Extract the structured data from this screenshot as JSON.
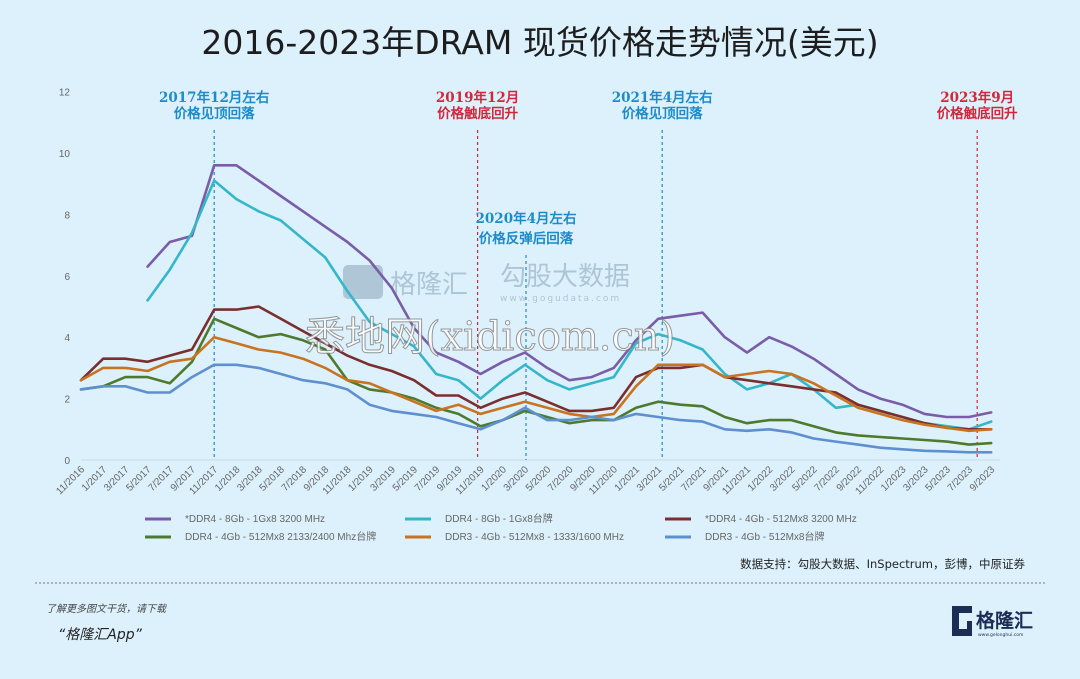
{
  "chart_data": {
    "type": "line",
    "title": "2016-2023年DRAM 现货价格走势情况(美元)",
    "xlabel": "",
    "ylabel": "",
    "ylim": [
      0,
      12
    ],
    "yticks": [
      "0",
      "2",
      "4",
      "6",
      "8",
      "10",
      "12"
    ],
    "grid": false,
    "legend_placement": "bottom",
    "categories": [
      "11/2016",
      "1/2017",
      "3/2017",
      "5/2017",
      "7/2017",
      "9/2017",
      "11/2017",
      "1/2018",
      "3/2018",
      "5/2018",
      "7/2018",
      "9/2018",
      "11/2018",
      "1/2019",
      "3/2019",
      "5/2019",
      "7/2019",
      "9/2019",
      "11/2019",
      "1/2020",
      "3/2020",
      "5/2020",
      "7/2020",
      "9/2020",
      "11/2020",
      "1/2021",
      "3/2021",
      "5/2021",
      "7/2021",
      "9/2021",
      "11/2021",
      "1/2022",
      "3/2022",
      "5/2022",
      "7/2022",
      "9/2022",
      "11/2022",
      "1/2023",
      "3/2023",
      "5/2023",
      "7/2023",
      "9/2023"
    ],
    "series": [
      {
        "name": "*DDR4 - 8Gb - 1Gx8 3200 MHz",
        "color": "#7a5ca8",
        "values": [
          null,
          null,
          null,
          6.3,
          7.1,
          7.3,
          9.6,
          9.6,
          9.1,
          8.6,
          8.1,
          7.6,
          7.1,
          6.5,
          5.6,
          4.3,
          3.5,
          3.2,
          2.8,
          3.2,
          3.5,
          3.0,
          2.6,
          2.7,
          3.0,
          3.9,
          4.6,
          4.7,
          4.8,
          4.0,
          3.5,
          4.0,
          3.7,
          3.3,
          2.8,
          2.3,
          2.0,
          1.8,
          1.5,
          1.4,
          1.4,
          1.55
        ]
      },
      {
        "name": "DDR4 - 8Gb - 1Gx8台牌",
        "color": "#35b6c9",
        "values": [
          null,
          null,
          null,
          5.2,
          6.2,
          7.4,
          9.1,
          8.5,
          8.1,
          7.8,
          7.2,
          6.6,
          5.5,
          4.5,
          4.1,
          3.7,
          2.8,
          2.6,
          2.0,
          2.6,
          3.1,
          2.6,
          2.3,
          2.5,
          2.7,
          3.8,
          4.1,
          3.9,
          3.6,
          2.8,
          2.3,
          2.5,
          2.8,
          2.3,
          1.7,
          1.8,
          1.6,
          1.4,
          1.2,
          1.1,
          1.0,
          1.25
        ]
      },
      {
        "name": "*DDR4 - 4Gb - 512Mx8 3200 MHz",
        "color": "#7b2e2e",
        "values": [
          2.6,
          3.3,
          3.3,
          3.2,
          3.4,
          3.6,
          4.9,
          4.9,
          5.0,
          4.6,
          4.2,
          3.8,
          3.4,
          3.1,
          2.9,
          2.6,
          2.1,
          2.1,
          1.7,
          2.0,
          2.2,
          1.9,
          1.6,
          1.6,
          1.7,
          2.7,
          3.0,
          3.0,
          3.1,
          2.7,
          2.6,
          2.5,
          2.4,
          2.3,
          2.2,
          1.8,
          1.6,
          1.4,
          1.2,
          1.05,
          1.0,
          1.0
        ]
      },
      {
        "name": "DDR4 - 4Gb - 512Mx8 2133/2400 Mhz台牌",
        "color": "#4d7a2c",
        "values": [
          2.3,
          2.4,
          2.7,
          2.7,
          2.5,
          3.2,
          4.6,
          4.3,
          4.0,
          4.1,
          3.9,
          3.6,
          2.6,
          2.3,
          2.2,
          2.0,
          1.7,
          1.5,
          1.1,
          1.3,
          1.6,
          1.4,
          1.2,
          1.3,
          1.3,
          1.7,
          1.9,
          1.8,
          1.75,
          1.4,
          1.2,
          1.3,
          1.3,
          1.1,
          0.9,
          0.8,
          0.75,
          0.7,
          0.65,
          0.6,
          0.5,
          0.55
        ]
      },
      {
        "name": "DDR3 - 4Gb - 512Mx8 - 1333/1600 MHz",
        "color": "#c8731f",
        "values": [
          2.6,
          3.0,
          3.0,
          2.9,
          3.2,
          3.3,
          4.0,
          3.8,
          3.6,
          3.5,
          3.3,
          3.0,
          2.6,
          2.5,
          2.2,
          1.9,
          1.6,
          1.8,
          1.5,
          1.7,
          1.9,
          1.7,
          1.5,
          1.4,
          1.5,
          2.4,
          3.1,
          3.1,
          3.1,
          2.7,
          2.8,
          2.9,
          2.8,
          2.5,
          2.1,
          1.7,
          1.5,
          1.3,
          1.15,
          1.05,
          0.95,
          1.0
        ]
      },
      {
        "name": "DDR3 - 4Gb - 512Mx8台牌",
        "color": "#5e8fd1",
        "values": [
          2.3,
          2.4,
          2.4,
          2.2,
          2.2,
          2.7,
          3.1,
          3.1,
          3.0,
          2.8,
          2.6,
          2.5,
          2.3,
          1.8,
          1.6,
          1.5,
          1.4,
          1.2,
          1.0,
          1.3,
          1.7,
          1.3,
          1.3,
          1.4,
          1.3,
          1.5,
          1.4,
          1.3,
          1.25,
          1.0,
          0.95,
          1.0,
          0.9,
          0.7,
          0.6,
          0.5,
          0.4,
          0.35,
          0.3,
          0.28,
          0.25,
          0.25
        ]
      }
    ],
    "annotations": [
      {
        "line1": "2017年12月左右",
        "line2": "价格见顶回落",
        "date": "11/2017",
        "color": "#1d8ac9"
      },
      {
        "line1": "2019年12月",
        "line2": "价格触底回升",
        "date": "11/2019",
        "color": "#d0283a"
      },
      {
        "line1": "2020年4月左右",
        "line2": "价格反弹后回落",
        "date": "3/2020",
        "color": "#1d8ac9"
      },
      {
        "line1": "2021年4月左右",
        "line2": "价格见顶回落",
        "date": "3/2021",
        "color": "#1d8ac9"
      },
      {
        "line1": "2023年9月",
        "line2": "价格触底回升",
        "date": "9/2023",
        "color": "#d0283a"
      }
    ]
  },
  "source": "数据支持：勾股大数据、InSpectrum，彭博，中原证券",
  "footer": {
    "line1": "了解更多图文干货，请下载",
    "line2": "“格隆汇App”",
    "logo_text": "格隆汇",
    "logo_url_text": "www.gelonghui.com"
  },
  "watermarks": {
    "gelonghui": "格隆汇",
    "gogudata": "勾股大数据",
    "gogudata_url": "www.gogudata.com",
    "xidi": "悉地网(xidicom.cn)"
  }
}
